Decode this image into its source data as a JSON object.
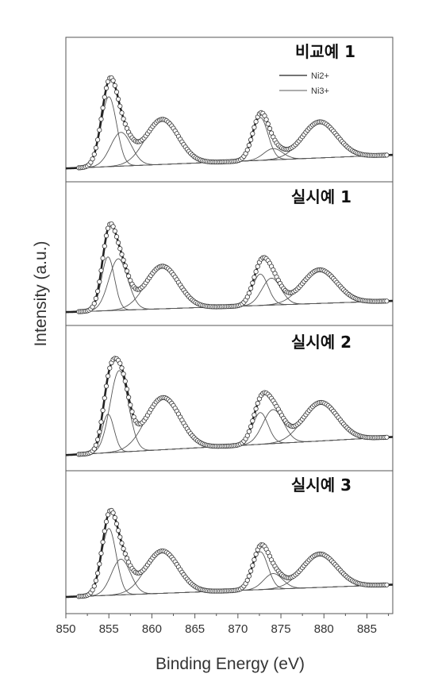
{
  "chart_data": {
    "type": "line",
    "xlabel": "Binding Energy (eV)",
    "ylabel": "Intensity (a.u.)",
    "xlim": [
      850,
      888
    ],
    "x_ticks": [
      850,
      855,
      860,
      865,
      870,
      875,
      880,
      885
    ],
    "legend": {
      "entries": [
        "Ni2+",
        "Ni3+"
      ],
      "placement": "top-right of first panel"
    },
    "panels": [
      {
        "title": "비교예 1",
        "peaks": {
          "ni2": [
            855.0,
            0.62,
            0.9
          ],
          "ni3": [
            856.4,
            0.3,
            1.2
          ],
          "sat1": [
            861.2,
            0.4,
            1.9
          ],
          "p2a": [
            872.6,
            0.38,
            0.9
          ],
          "p2b": [
            874.1,
            0.1,
            1.1
          ],
          "sat2": [
            879.5,
            0.32,
            2.0
          ]
        },
        "baseline": [
          0.02,
          0.14
        ]
      },
      {
        "title": "실시예 1",
        "peaks": {
          "ni2": [
            854.9,
            0.48,
            0.75
          ],
          "ni3": [
            856.1,
            0.46,
            1.1
          ],
          "sat1": [
            861.2,
            0.38,
            1.9
          ],
          "p2a": [
            872.6,
            0.28,
            0.9
          ],
          "p2b": [
            873.9,
            0.24,
            1.1
          ],
          "sat2": [
            879.5,
            0.3,
            2.0
          ]
        },
        "baseline": [
          0.02,
          0.12
        ]
      },
      {
        "title": "실시예 2",
        "peaks": {
          "ni2": [
            854.9,
            0.34,
            0.7
          ],
          "ni3": [
            856.2,
            0.72,
            1.05
          ],
          "sat1": [
            861.3,
            0.46,
            2.0
          ],
          "p2a": [
            872.6,
            0.28,
            0.9
          ],
          "p2b": [
            874.1,
            0.3,
            1.2
          ],
          "sat2": [
            879.6,
            0.34,
            2.0
          ]
        },
        "baseline": [
          0.04,
          0.2
        ]
      },
      {
        "title": "실시예 3",
        "peaks": {
          "ni2": [
            855.0,
            0.6,
            0.85
          ],
          "ni3": [
            856.4,
            0.32,
            1.1
          ],
          "sat1": [
            861.2,
            0.38,
            1.9
          ],
          "p2a": [
            872.6,
            0.34,
            0.9
          ],
          "p2b": [
            874.1,
            0.14,
            1.1
          ],
          "sat2": [
            879.5,
            0.3,
            2.0
          ]
        },
        "baseline": [
          0.05,
          0.16
        ]
      }
    ]
  }
}
